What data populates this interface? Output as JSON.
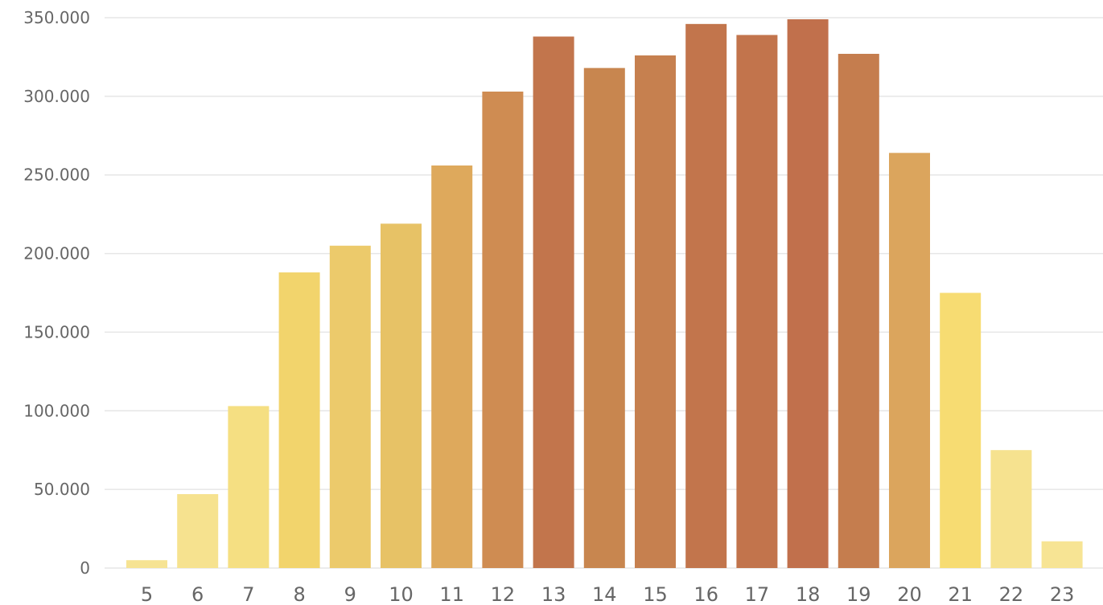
{
  "chart_data": {
    "type": "bar",
    "title": "",
    "xlabel": "",
    "ylabel": "",
    "categories": [
      "5",
      "6",
      "7",
      "8",
      "9",
      "10",
      "11",
      "12",
      "13",
      "14",
      "15",
      "16",
      "17",
      "18",
      "19",
      "20",
      "21",
      "22",
      "23"
    ],
    "values": [
      5000,
      47000,
      103000,
      188000,
      205000,
      219000,
      256000,
      303000,
      338000,
      318000,
      326000,
      346000,
      339000,
      349000,
      327000,
      264000,
      175000,
      75000,
      17000
    ],
    "colors": [
      "#f6e393",
      "#f6e28f",
      "#f5df82",
      "#f2d46c",
      "#ecca6b",
      "#e7c266",
      "#dea95c",
      "#cf8c52",
      "#c2754c",
      "#c8864f",
      "#c6804f",
      "#c2754c",
      "#c2744c",
      "#c1704c",
      "#c57d4e",
      "#dba55d",
      "#f7dc72",
      "#f6e28f",
      "#f7e494"
    ],
    "ylim": [
      0,
      350000
    ],
    "yticks": [
      0,
      50000,
      100000,
      150000,
      200000,
      250000,
      300000,
      350000
    ],
    "ytick_labels": [
      "0",
      "50.000",
      "100.000",
      "150.000",
      "200.000",
      "250.000",
      "300.000",
      "350.000"
    ],
    "grid": true,
    "legend": "none"
  }
}
